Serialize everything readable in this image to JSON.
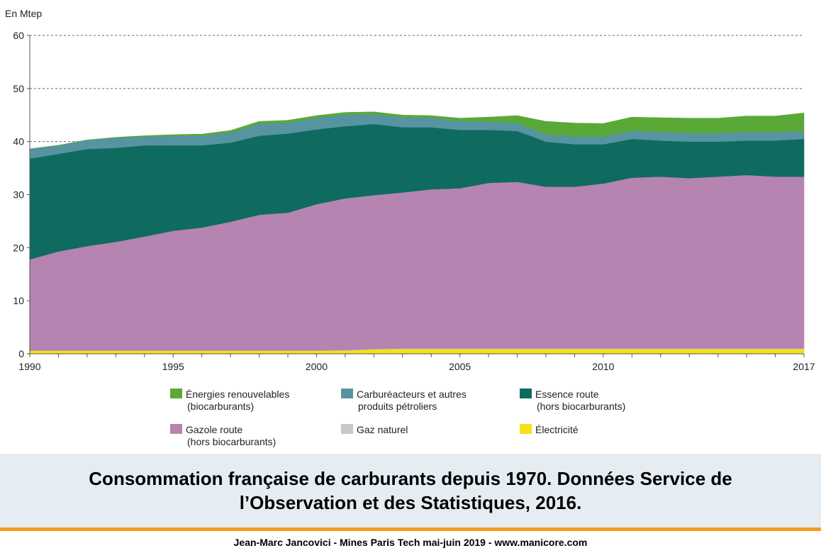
{
  "chart_data": {
    "type": "area",
    "stacked": true,
    "unit_label": "En Mtep",
    "x": [
      1990,
      1991,
      1992,
      1993,
      1994,
      1995,
      1996,
      1997,
      1998,
      1999,
      2000,
      2001,
      2002,
      2003,
      2004,
      2005,
      2006,
      2007,
      2008,
      2009,
      2010,
      2011,
      2012,
      2013,
      2014,
      2015,
      2016,
      2017
    ],
    "x_ticks": [
      1990,
      1995,
      2000,
      2005,
      2010,
      2017
    ],
    "ylim": [
      0,
      60
    ],
    "y_ticks": [
      0,
      10,
      20,
      30,
      40,
      50,
      60
    ],
    "grid": "horizontal dashed",
    "legend_position": "bottom",
    "series": [
      {
        "name": "Électricité",
        "color": "#f7e017",
        "values": [
          0.6,
          0.6,
          0.6,
          0.6,
          0.6,
          0.6,
          0.6,
          0.6,
          0.6,
          0.6,
          0.6,
          0.6,
          0.8,
          0.9,
          0.9,
          0.9,
          0.9,
          0.9,
          0.9,
          0.9,
          0.9,
          0.9,
          0.9,
          0.9,
          0.9,
          0.9,
          0.9,
          0.9
        ]
      },
      {
        "name": "Gaz naturel",
        "color": "#c8c8c8",
        "values": [
          0.0,
          0.0,
          0.0,
          0.0,
          0.0,
          0.0,
          0.0,
          0.0,
          0.0,
          0.0,
          0.0,
          0.1,
          0.1,
          0.1,
          0.1,
          0.1,
          0.1,
          0.1,
          0.1,
          0.1,
          0.1,
          0.1,
          0.1,
          0.1,
          0.1,
          0.1,
          0.1,
          0.1
        ]
      },
      {
        "name": "Gazole route (hors biocarburants)",
        "color": "#b584b1",
        "values": [
          17.2,
          18.7,
          19.7,
          20.5,
          21.5,
          22.6,
          23.2,
          24.3,
          25.6,
          26.0,
          27.6,
          28.6,
          29.0,
          29.4,
          30.0,
          30.2,
          31.2,
          31.4,
          30.5,
          30.5,
          31.1,
          32.2,
          32.4,
          32.1,
          32.4,
          32.7,
          32.4,
          32.4
        ]
      },
      {
        "name": "Essence route (hors biocarburants)",
        "color": "#0f6b60",
        "values": [
          19.0,
          18.4,
          18.3,
          17.7,
          17.2,
          16.1,
          15.5,
          14.9,
          14.9,
          14.9,
          14.1,
          13.6,
          13.4,
          12.3,
          11.7,
          11.0,
          10.0,
          9.6,
          8.5,
          8.0,
          7.4,
          7.3,
          6.8,
          6.9,
          6.6,
          6.5,
          6.8,
          7.1
        ]
      },
      {
        "name": "Carburéacteurs et autres produits pétroliers",
        "color": "#5694a1",
        "values": [
          1.8,
          1.6,
          1.7,
          1.9,
          1.7,
          1.8,
          1.8,
          1.9,
          2.3,
          2.1,
          2.2,
          2.2,
          1.9,
          1.9,
          1.8,
          1.7,
          1.6,
          1.5,
          1.4,
          1.5,
          1.5,
          1.6,
          1.6,
          1.6,
          1.6,
          1.7,
          1.6,
          1.5
        ]
      },
      {
        "name": "Énergies renouvelables (biocarburants)",
        "color": "#5aa937",
        "values": [
          0.0,
          0.0,
          0.0,
          0.1,
          0.1,
          0.2,
          0.3,
          0.4,
          0.4,
          0.4,
          0.4,
          0.4,
          0.4,
          0.4,
          0.4,
          0.5,
          0.8,
          1.4,
          2.4,
          2.5,
          2.4,
          2.5,
          2.7,
          2.8,
          2.8,
          2.9,
          3.0,
          3.4
        ]
      }
    ]
  },
  "legend": [
    {
      "series": "Énergies renouvelables (biocarburants)",
      "lines": [
        "Énergies renouvelables",
        "(biocarburants)"
      ]
    },
    {
      "series": "Carburéacteurs et autres produits pétroliers",
      "lines": [
        "Carburéacteurs et autres",
        "produits pétroliers"
      ]
    },
    {
      "series": "Essence route (hors biocarburants)",
      "lines": [
        "Essence route",
        "(hors biocarburants)"
      ]
    },
    {
      "series": "Gazole route (hors biocarburants)",
      "lines": [
        "Gazole route",
        "(hors biocarburants)"
      ]
    },
    {
      "series": "Gaz naturel",
      "lines": [
        "Gaz naturel"
      ]
    },
    {
      "series": "Électricité",
      "lines": [
        "Électricité"
      ]
    }
  ],
  "caption": "Consommation française de carburants depuis 1970. Données Service de l’Observation et des Statistiques, 2016.",
  "footer": "Jean-Marc Jancovici - Mines Paris Tech mai-juin 2019 - www.manicore.com"
}
